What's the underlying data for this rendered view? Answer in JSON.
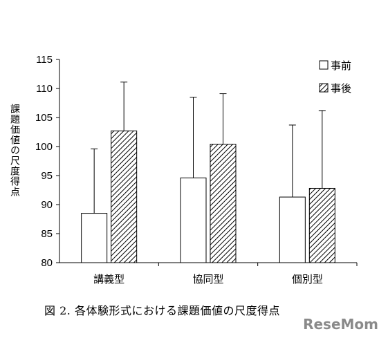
{
  "chart_data": {
    "type": "bar",
    "caption": "図 2. 各体験形式における課題価値の尺度得点",
    "ylabel": "課題価値の尺度得点",
    "ylim": [
      80,
      115
    ],
    "yticks": [
      80,
      85,
      90,
      95,
      100,
      105,
      110,
      115
    ],
    "categories": [
      "講義型",
      "協同型",
      "個別型"
    ],
    "legend_position": "top-right",
    "grid": false,
    "series": [
      {
        "name": "事前",
        "fill": "#ffffff",
        "pattern": "none",
        "values": [
          88.5,
          94.6,
          91.3
        ],
        "error_upper": [
          99.6,
          108.5,
          103.7
        ]
      },
      {
        "name": "事後",
        "fill": "hatched",
        "pattern": "diagonal",
        "values": [
          102.7,
          100.4,
          92.8
        ],
        "error_upper": [
          111.1,
          109.1,
          106.2
        ]
      }
    ]
  },
  "watermark": "ReseMom"
}
